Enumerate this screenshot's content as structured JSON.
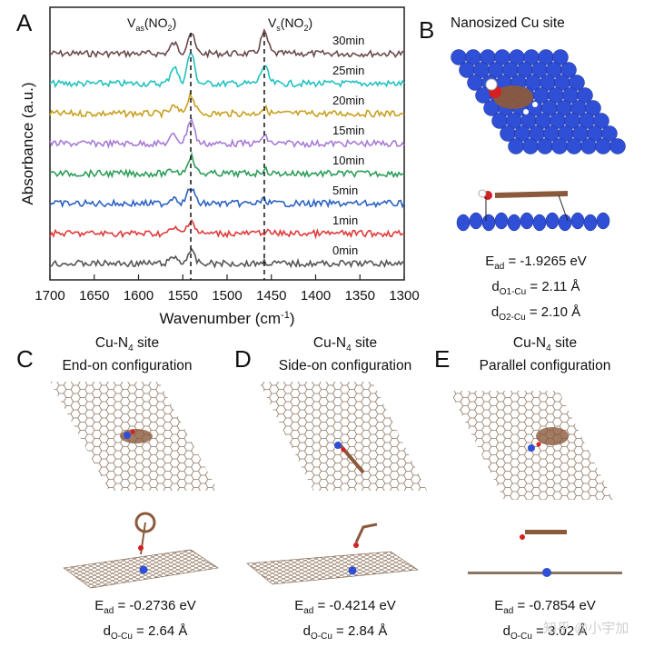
{
  "panels": {
    "A": {
      "letter": "A",
      "chart_data": {
        "type": "line",
        "xlabel": "Wavenumber (cm",
        "xlabel_sup": "-1",
        "xlabel_end": ")",
        "ylabel": "Absorbance (a.u.)",
        "xlim": [
          1700,
          1300
        ],
        "xticks": [
          1700,
          1650,
          1600,
          1550,
          1500,
          1450,
          1400,
          1350,
          1300
        ],
        "markers": [
          {
            "main": "V",
            "sub": "as",
            "label": "(NO",
            "sub2": "2",
            "end": ")",
            "x": 1541
          },
          {
            "main": "V",
            "sub": "s",
            "label": "(NO",
            "sub2": "2",
            "end": ")",
            "x": 1458
          }
        ],
        "series": [
          {
            "name": "30min",
            "color": "#6b4a4a",
            "offset": 7
          },
          {
            "name": "25min",
            "color": "#22c2c0",
            "offset": 6
          },
          {
            "name": "20min",
            "color": "#c8a020",
            "offset": 5
          },
          {
            "name": "15min",
            "color": "#a77bd6",
            "offset": 4
          },
          {
            "name": "10min",
            "color": "#2e9e5a",
            "offset": 3
          },
          {
            "name": "5min",
            "color": "#2a62c0",
            "offset": 2
          },
          {
            "name": "1min",
            "color": "#e03a3a",
            "offset": 1
          },
          {
            "name": "0min",
            "color": "#555555",
            "offset": 0
          }
        ],
        "peaks": [
          {
            "x": 1541,
            "height": [
              0.35,
              0.4,
              0.45,
              0.5,
              0.7,
              0.55,
              0.9,
              0.6
            ]
          },
          {
            "x": 1458,
            "height": [
              0.05,
              0.05,
              0.1,
              0.1,
              0.2,
              0.15,
              0.5,
              0.6
            ]
          },
          {
            "x": 1560,
            "height": [
              0.2,
              0.15,
              0.2,
              0.1,
              0.25,
              0.2,
              0.5,
              0.3
            ]
          }
        ]
      }
    },
    "B": {
      "letter": "B",
      "title": "Nanosized Cu site",
      "e_main": "E",
      "e_sub": "ad",
      "e_val": " = -1.9265 eV",
      "d1_main": "d",
      "d1_sub": "O1-Cu",
      "d1_val": " = 2.11 Å",
      "d2_main": "d",
      "d2_sub": "O2-Cu",
      "d2_val": " = 2.10 Å"
    },
    "C": {
      "letter": "C",
      "line1_a": "Cu-N",
      "line1_sub": "4",
      "line1_b": "  site",
      "line2": "End-on configuration",
      "e_main": "E",
      "e_sub": "ad",
      "e_val": " = -0.2736 eV",
      "d_main": "d",
      "d_sub": "O-Cu",
      "d_val": " = 2.64 Å"
    },
    "D": {
      "letter": "D",
      "line1_a": "Cu-N",
      "line1_sub": "4",
      "line1_b": "  site",
      "line2": "Side-on configuration",
      "e_main": "E",
      "e_sub": "ad",
      "e_val": " = -0.4214 eV",
      "d_main": "d",
      "d_sub": "O-Cu",
      "d_val": " = 2.84 Å"
    },
    "E": {
      "letter": "E",
      "line1_a": "Cu-N",
      "line1_sub": "4",
      "line1_b": "  site",
      "line2": "Parallel configuration",
      "e_main": "E",
      "e_sub": "ad",
      "e_val": " = -0.7854 eV",
      "d_main": "d",
      "d_sub": "O-Cu",
      "d_val": " = 3.02 Å"
    }
  },
  "watermark": "知乎 @小宇加",
  "colors": {
    "cu": "#2f4fd6",
    "carbon": "#8b5a3c",
    "oxygen": "#d42020",
    "graphene": "#8c7560"
  }
}
